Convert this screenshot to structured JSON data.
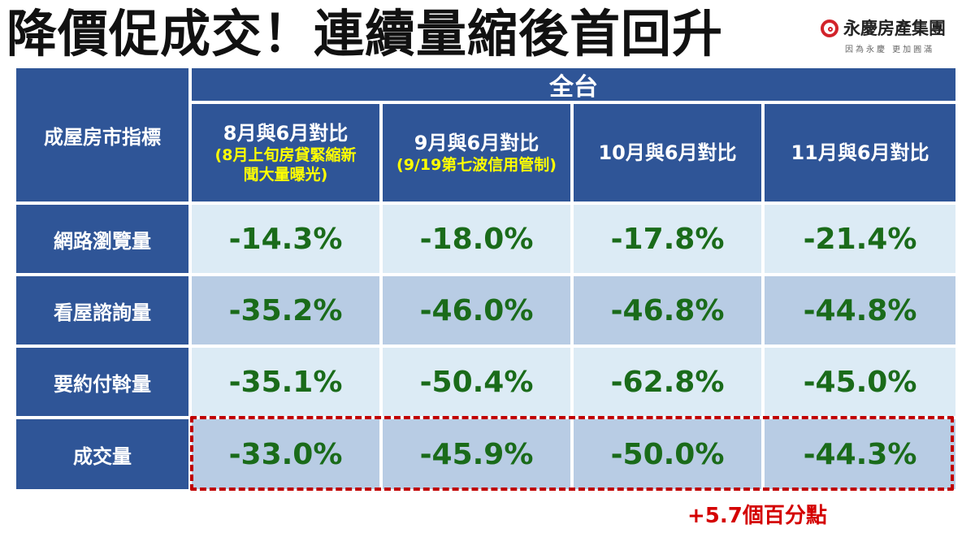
{
  "title": "降價促成交！連續量縮後首回升",
  "logo": {
    "name": "永慶房產集團",
    "slogan": "因為永慶 更加圓滿",
    "color": "#d2232a"
  },
  "table": {
    "corner_label": "成屋房市指標",
    "region": "全台",
    "columns": [
      {
        "label": "8月與6月對比",
        "note": "(8月上旬房貸緊縮新聞大量曝光)"
      },
      {
        "label": "9月與6月對比",
        "note": "(9/19第七波信用管制)"
      },
      {
        "label": "10月與6月對比",
        "note": ""
      },
      {
        "label": "11月與6月對比",
        "note": ""
      }
    ],
    "rows": [
      {
        "label": "網路瀏覽量",
        "values": [
          "-14.3%",
          "-18.0%",
          "-17.8%",
          "-21.4%"
        ]
      },
      {
        "label": "看屋諮詢量",
        "values": [
          "-35.2%",
          "-46.0%",
          "-46.8%",
          "-44.8%"
        ]
      },
      {
        "label": "要約付斡量",
        "values": [
          "-35.1%",
          "-50.4%",
          "-62.8%",
          "-45.0%"
        ]
      },
      {
        "label": "成交量",
        "values": [
          "-33.0%",
          "-45.9%",
          "-50.0%",
          "-44.3%"
        ]
      }
    ]
  },
  "annotation": "+5.7個百分點",
  "colors": {
    "header": "#2f5597",
    "row_light": "#dcebf5",
    "row_mid": "#b8cce4",
    "value_green": "#1a6b1a",
    "note_yellow": "#ffff00",
    "highlight_red": "#c00000"
  }
}
